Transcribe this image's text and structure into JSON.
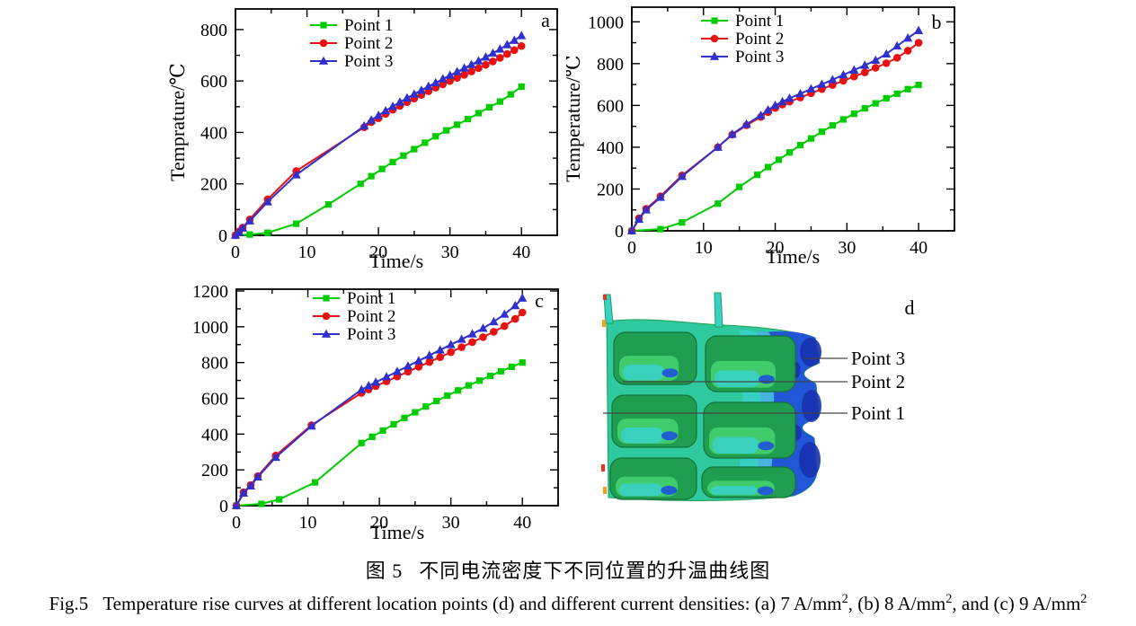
{
  "figure": {
    "caption_zh": {
      "label": "图 5",
      "text": "不同电流密度下不同位置的升温曲线图"
    },
    "caption_en": {
      "label": "Fig.5",
      "segments": [
        {
          "t": "Temperature rise curves at different location points (d) and different current densities: (a) 7 A/mm"
        },
        {
          "sup": "2"
        },
        {
          "t": ", (b) 8 A/mm"
        },
        {
          "sup": "2"
        },
        {
          "t": ", and (c) 9 A/mm"
        },
        {
          "sup": "2"
        }
      ]
    }
  },
  "colors": {
    "point1": "#00cc00",
    "point2": "#e81111",
    "point3": "#3030cc",
    "axis": "#000000",
    "leader": "#444444"
  },
  "chart_data": [
    {
      "id": "a",
      "panel_label": "a",
      "type": "line",
      "title": "",
      "xlabel": "Time/s",
      "ylabel": "Temprature/℃",
      "xlim": [
        0,
        45
      ],
      "ylim": [
        0,
        880
      ],
      "xticks": [
        0,
        10,
        20,
        30,
        40
      ],
      "yticks": [
        0,
        200,
        400,
        600,
        800
      ],
      "x_minor_step": 5,
      "y_minor_step": 100,
      "grid": false,
      "legend_position": "upper-left-inside",
      "legend": [
        "Point 1",
        "Point 2",
        "Point 3"
      ],
      "series": [
        {
          "name": "Point 1",
          "color": "point1",
          "marker": "square",
          "x": [
            0,
            2,
            4.5,
            8.5,
            13,
            17.5,
            19,
            20.5,
            22,
            23.5,
            25,
            26.5,
            28,
            29.5,
            31,
            32.5,
            34,
            35.5,
            37,
            38.5,
            40
          ],
          "y": [
            0,
            3,
            10,
            45,
            120,
            200,
            230,
            258,
            285,
            310,
            335,
            360,
            385,
            408,
            430,
            452,
            475,
            498,
            520,
            548,
            578
          ]
        },
        {
          "name": "Point 2",
          "color": "point2",
          "marker": "circle",
          "x": [
            0,
            0.5,
            1,
            2,
            4.5,
            8.5,
            18,
            19,
            20,
            21,
            22,
            23,
            24,
            25,
            26,
            27,
            28,
            29,
            30,
            31,
            32,
            33,
            34,
            35,
            36,
            37,
            38,
            39,
            40
          ],
          "y": [
            0,
            15,
            30,
            62,
            140,
            250,
            420,
            440,
            455,
            472,
            488,
            503,
            518,
            532,
            546,
            560,
            574,
            587,
            600,
            612,
            624,
            637,
            650,
            663,
            676,
            690,
            705,
            720,
            736
          ]
        },
        {
          "name": "Point 3",
          "color": "point3",
          "marker": "triangle",
          "x": [
            0,
            0.5,
            1,
            2,
            4.5,
            8.5,
            18,
            19,
            20,
            21,
            22,
            23,
            24,
            25,
            26,
            27,
            28,
            29,
            30,
            31,
            32,
            33,
            34,
            35,
            36,
            37,
            38,
            39,
            40
          ],
          "y": [
            0,
            12,
            28,
            56,
            130,
            235,
            425,
            448,
            466,
            484,
            501,
            518,
            534,
            549,
            564,
            579,
            593,
            608,
            622,
            636,
            650,
            664,
            678,
            693,
            708,
            724,
            741,
            758,
            776
          ]
        }
      ]
    },
    {
      "id": "b",
      "panel_label": "b",
      "type": "line",
      "title": "",
      "xlabel": "Time/s",
      "ylabel": "Temperature/℃",
      "xlim": [
        0,
        45
      ],
      "ylim": [
        0,
        1070
      ],
      "xticks": [
        0,
        10,
        20,
        30,
        40
      ],
      "yticks": [
        0,
        200,
        400,
        600,
        800,
        1000
      ],
      "x_minor_step": 5,
      "y_minor_step": 100,
      "grid": false,
      "legend_position": "upper-left-inside",
      "legend": [
        "Point 1",
        "Point 2",
        "Point 3"
      ],
      "series": [
        {
          "name": "Point 1",
          "color": "point1",
          "marker": "square",
          "x": [
            0,
            4,
            7,
            12,
            15,
            17.5,
            19,
            20.5,
            22,
            23.5,
            25,
            26.5,
            28,
            29.5,
            31,
            32.5,
            34,
            35.5,
            37,
            38.5,
            40
          ],
          "y": [
            0,
            8,
            40,
            130,
            210,
            268,
            305,
            340,
            375,
            410,
            442,
            474,
            504,
            533,
            560,
            586,
            610,
            634,
            656,
            678,
            698
          ]
        },
        {
          "name": "Point 2",
          "color": "point2",
          "marker": "circle",
          "x": [
            0,
            1,
            2,
            4,
            7,
            12,
            14,
            16,
            18,
            19,
            20,
            21,
            22,
            23.5,
            25,
            26.5,
            28,
            29.5,
            31,
            32.5,
            34,
            35.5,
            37,
            38.5,
            40
          ],
          "y": [
            0,
            60,
            105,
            165,
            265,
            400,
            460,
            505,
            545,
            568,
            588,
            604,
            618,
            638,
            658,
            678,
            698,
            718,
            738,
            758,
            780,
            802,
            828,
            862,
            900
          ]
        },
        {
          "name": "Point 3",
          "color": "point3",
          "marker": "triangle",
          "x": [
            0,
            1,
            2,
            4,
            7,
            12,
            14,
            16,
            18,
            19,
            20,
            21,
            22,
            23.5,
            25,
            26.5,
            28,
            29.5,
            31,
            32.5,
            34,
            35.5,
            37,
            38.5,
            40
          ],
          "y": [
            0,
            55,
            100,
            160,
            260,
            400,
            462,
            510,
            552,
            578,
            600,
            618,
            634,
            656,
            679,
            701,
            723,
            746,
            769,
            792,
            816,
            846,
            884,
            922,
            958
          ]
        }
      ]
    },
    {
      "id": "c",
      "panel_label": "c",
      "type": "line",
      "title": "",
      "xlabel": "Time/s",
      "ylabel": "",
      "xlim": [
        0,
        45
      ],
      "ylim": [
        0,
        1210
      ],
      "xticks": [
        0,
        10,
        20,
        30,
        40
      ],
      "yticks": [
        0,
        200,
        400,
        600,
        800,
        1000,
        1200
      ],
      "x_minor_step": 5,
      "y_minor_step": 100,
      "grid": false,
      "legend_position": "upper-left-inside",
      "legend": [
        "Point 1",
        "Point 2",
        "Point 3"
      ],
      "series": [
        {
          "name": "Point 1",
          "color": "point1",
          "marker": "square",
          "x": [
            0,
            3.5,
            6,
            11,
            17.5,
            19,
            20.5,
            22,
            23.5,
            25,
            26.5,
            28,
            29.5,
            31,
            32.5,
            34,
            35.5,
            37,
            38.5,
            40
          ],
          "y": [
            0,
            10,
            35,
            130,
            350,
            385,
            420,
            455,
            490,
            522,
            554,
            585,
            615,
            644,
            672,
            699,
            725,
            751,
            776,
            800
          ]
        },
        {
          "name": "Point 2",
          "color": "point2",
          "marker": "circle",
          "x": [
            0,
            1,
            2,
            3,
            5.5,
            10.5,
            17.5,
            18.5,
            19.5,
            21,
            22.5,
            24,
            25.5,
            27,
            28.5,
            30,
            31.5,
            33,
            34.5,
            36,
            37.5,
            39,
            40
          ],
          "y": [
            0,
            75,
            115,
            165,
            280,
            450,
            630,
            650,
            668,
            695,
            722,
            749,
            776,
            803,
            830,
            858,
            886,
            914,
            942,
            972,
            1004,
            1044,
            1080
          ]
        },
        {
          "name": "Point 3",
          "color": "point3",
          "marker": "triangle",
          "x": [
            0,
            1,
            2,
            3,
            5.5,
            10.5,
            17.5,
            18.5,
            19.5,
            21,
            22.5,
            24,
            25.5,
            27,
            28.5,
            30,
            31.5,
            33,
            34.5,
            36,
            37.5,
            39,
            40
          ],
          "y": [
            0,
            70,
            110,
            160,
            270,
            445,
            648,
            670,
            690,
            720,
            750,
            780,
            810,
            840,
            870,
            900,
            930,
            960,
            991,
            1028,
            1070,
            1118,
            1160
          ]
        }
      ]
    },
    {
      "id": "d",
      "panel_label": "d",
      "type": "heatmap",
      "title": "",
      "description": "Finite-element temperature contour of the joint showing measurement locations",
      "annotations": [
        "Point 3",
        "Point 2",
        "Point 1"
      ],
      "palette": [
        "#1732b0",
        "#2157d6",
        "#3f9fe0",
        "#49b4e4",
        "#38d0c8",
        "#2fc9a0",
        "#43cf6e",
        "#1f9e50",
        "#f0a020",
        "#e8341c"
      ]
    }
  ]
}
